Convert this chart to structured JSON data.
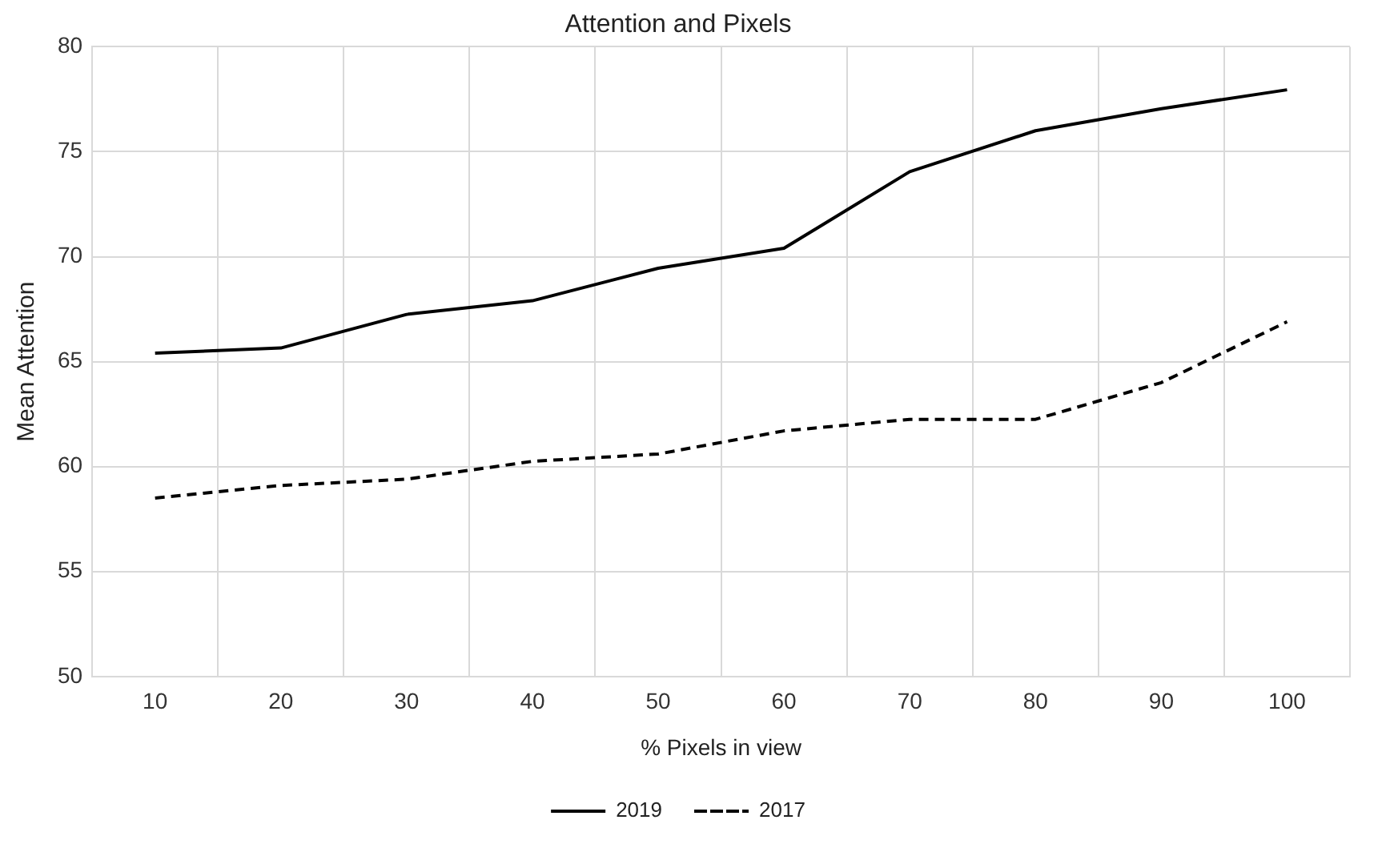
{
  "chart_data": {
    "type": "line",
    "title": "Attention and Pixels",
    "xlabel": "% Pixels in view",
    "ylabel": "Mean Attention",
    "categories": [
      "10",
      "20",
      "30",
      "40",
      "50",
      "60",
      "70",
      "80",
      "90",
      "100"
    ],
    "series": [
      {
        "name": "2019",
        "color": "#000000",
        "line_style": "solid",
        "values": [
          65.4,
          65.65,
          67.25,
          67.9,
          69.45,
          70.4,
          74.05,
          76.0,
          77.05,
          77.95
        ]
      },
      {
        "name": "2017",
        "color": "#000000",
        "line_style": "dashed",
        "values": [
          58.5,
          59.1,
          59.4,
          60.25,
          60.6,
          61.7,
          62.25,
          62.25,
          64.0,
          66.9
        ]
      }
    ],
    "ylim": [
      50,
      80
    ],
    "yticks": [
      50,
      55,
      60,
      65,
      70,
      75,
      80
    ],
    "grid": true,
    "legend": "bottom",
    "marker": "none"
  }
}
